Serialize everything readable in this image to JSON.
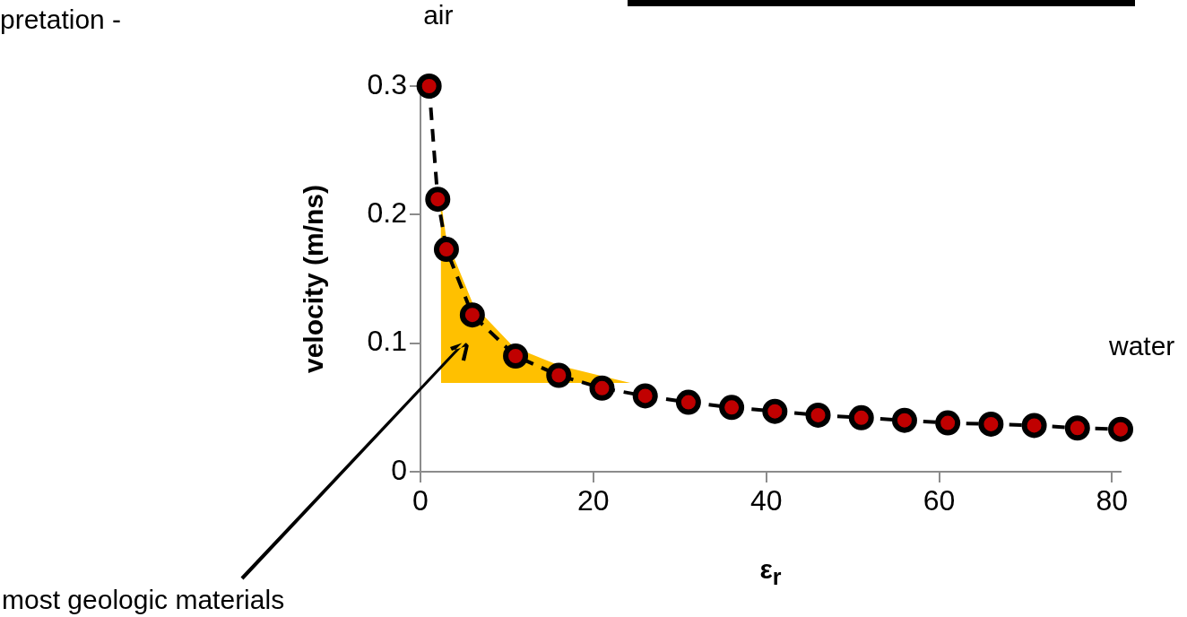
{
  "chart_data": {
    "type": "line",
    "xlabel": "ε$_{r}$",
    "ylabel": "velocity (m/ns)",
    "x": [
      1,
      2,
      3,
      6,
      11,
      16,
      21,
      26,
      31,
      36,
      41,
      46,
      51,
      56,
      61,
      66,
      71,
      76,
      81
    ],
    "series": [
      {
        "color": "#c00000",
        "values": [
          0.3,
          0.212,
          0.173,
          0.122,
          0.09,
          0.075,
          0.065,
          0.059,
          0.054,
          0.05,
          0.047,
          0.044,
          0.042,
          0.04,
          0.038,
          0.037,
          0.036,
          0.034,
          0.033
        ]
      }
    ],
    "xlim": [
      0,
      81
    ],
    "xticks": [
      0,
      20,
      40,
      60,
      80
    ],
    "ylim": [
      0,
      0.3
    ],
    "yticks": [
      0,
      0.1,
      0.2,
      0.3
    ],
    "marker": "circle",
    "line_style": "dashed",
    "grid": false,
    "legend": false,
    "annotations": [
      "pretation -",
      {
        "text": "air",
        "x": 1,
        "y": 0.3
      },
      {
        "text": "water",
        "x": 81,
        "y": 0.033
      },
      "most geologic materials"
    ]
  }
}
